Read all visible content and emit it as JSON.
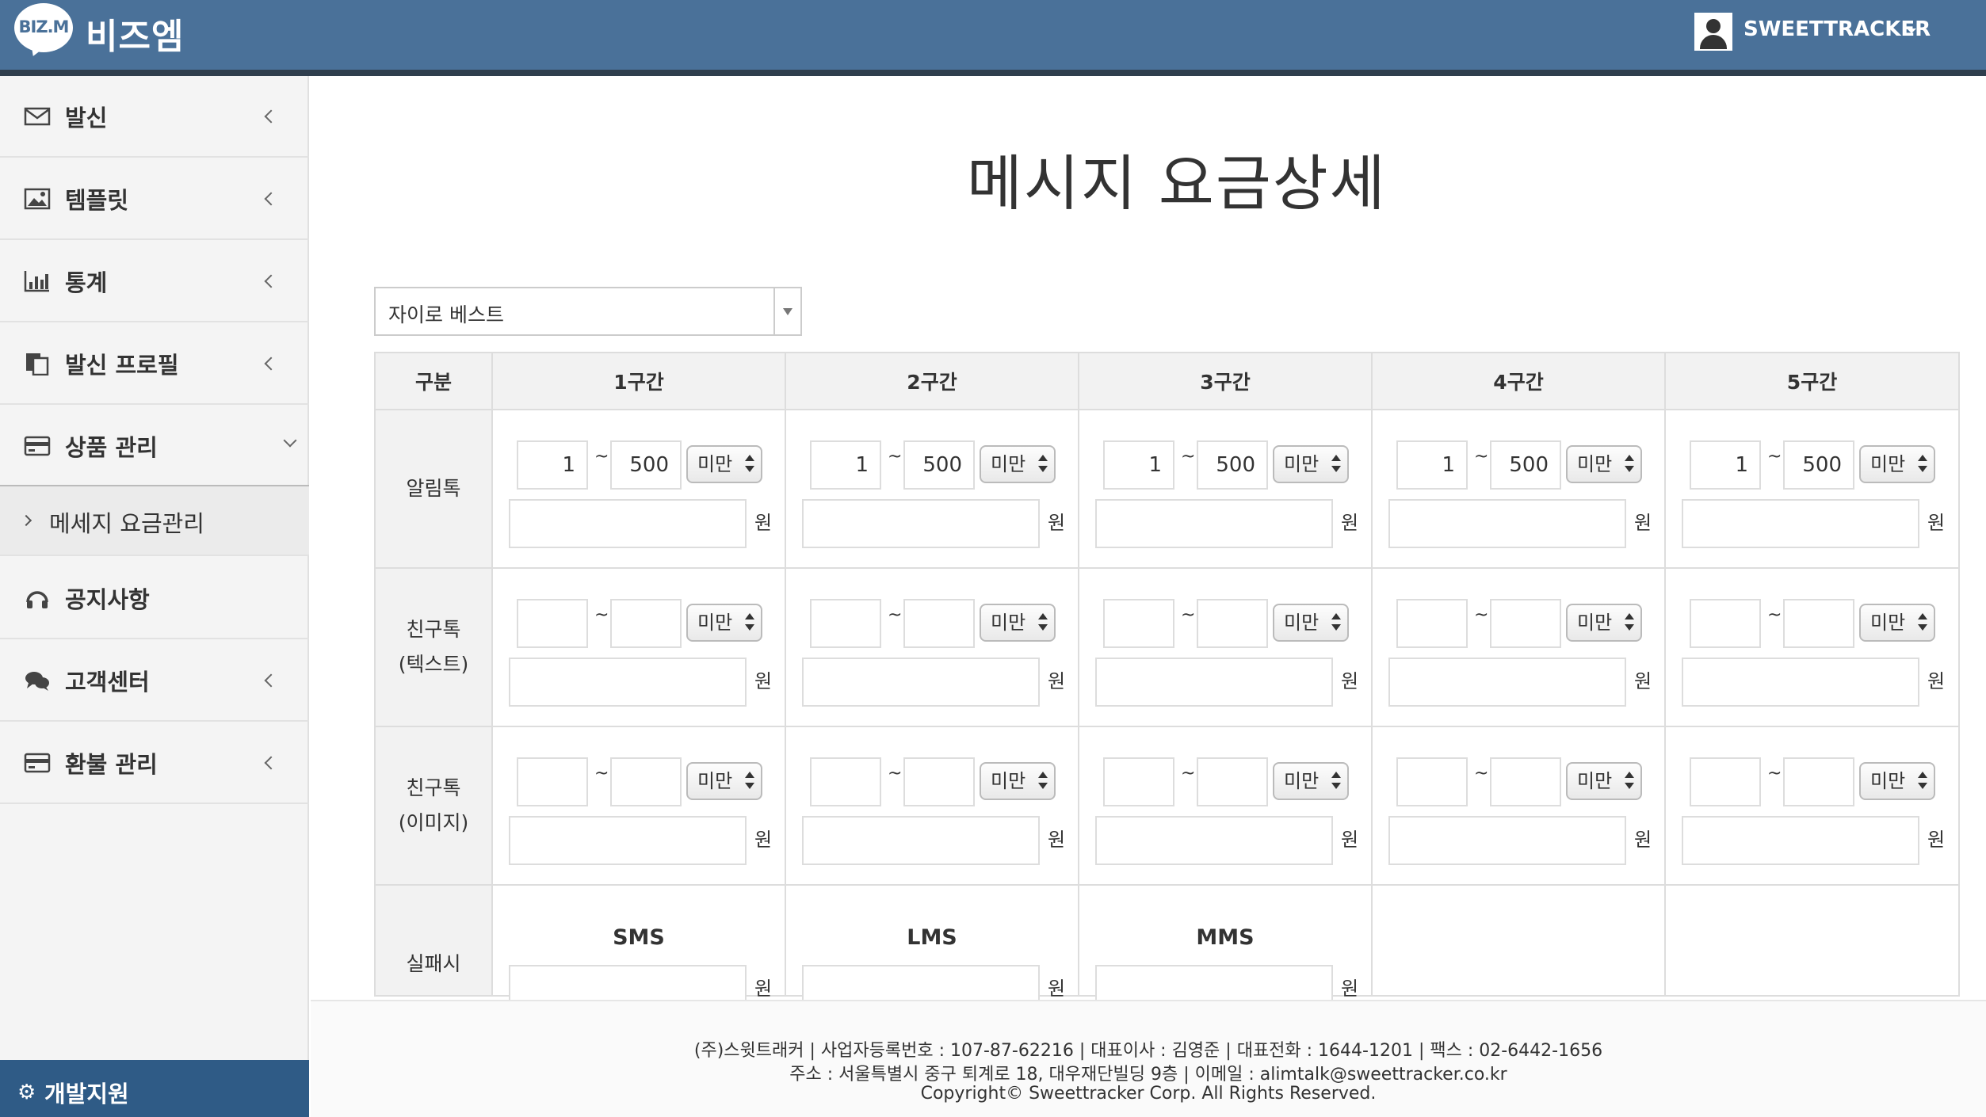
{
  "header": {
    "logo_mark": "BIZ.M",
    "logo_text": "비즈엠",
    "user_name": "SWEETTRACKER"
  },
  "sidebar": {
    "items": [
      {
        "label": "발신",
        "icon": "envelope-icon"
      },
      {
        "label": "템플릿",
        "icon": "image-icon"
      },
      {
        "label": "통계",
        "icon": "bar-chart-icon"
      },
      {
        "label": "발신 프로필",
        "icon": "copy-icon"
      },
      {
        "label": "상품 관리",
        "icon": "credit-card-icon"
      },
      {
        "label": "공지사항",
        "icon": "headset-icon"
      },
      {
        "label": "고객센터",
        "icon": "chat-icon"
      },
      {
        "label": "환불 관리",
        "icon": "credit-card-icon"
      }
    ],
    "sub_item": "메세지 요금관리",
    "dev_label": "개발지원"
  },
  "main": {
    "title": "메시지 요금상세",
    "select_value": "자이로 베스트",
    "table": {
      "headers": [
        "구분",
        "1구간",
        "2구간",
        "3구간",
        "4구간",
        "5구간"
      ],
      "rows": [
        {
          "label_line1": "알림톡",
          "label_line2": "",
          "from": "1",
          "to": "500",
          "unit": "미만",
          "won": "원"
        },
        {
          "label_line1": "친구톡",
          "label_line2": "(텍스트)",
          "from": "",
          "to": "",
          "unit": "미만",
          "won": "원"
        },
        {
          "label_line1": "친구톡",
          "label_line2": "(이미지)",
          "from": "",
          "to": "",
          "unit": "미만",
          "won": "원"
        }
      ],
      "tilde": "~",
      "fail_row": {
        "label": "실패시",
        "columns": [
          "SMS",
          "LMS",
          "MMS"
        ],
        "won": "원"
      }
    }
  },
  "footer": {
    "line1": "(주)스윗트래커  |  사업자등록번호 : 107-87-62216  |  대표이사 : 김영준  |  대표전화 : 1644-1201  |  팩스 : 02-6442-1656",
    "line2": "주소 : 서울특별시 중구 퇴계로 18, 대우재단빌딩 9층  |  이메일 : alimtalk@sweettracker.co.kr",
    "line3": "Copyright© Sweettracker Corp. All Rights Reserved."
  },
  "colors": {
    "header_bg": "#4a7199",
    "dev_bar_bg": "#2f5b86",
    "sidebar_bg": "#f4f4f4"
  }
}
